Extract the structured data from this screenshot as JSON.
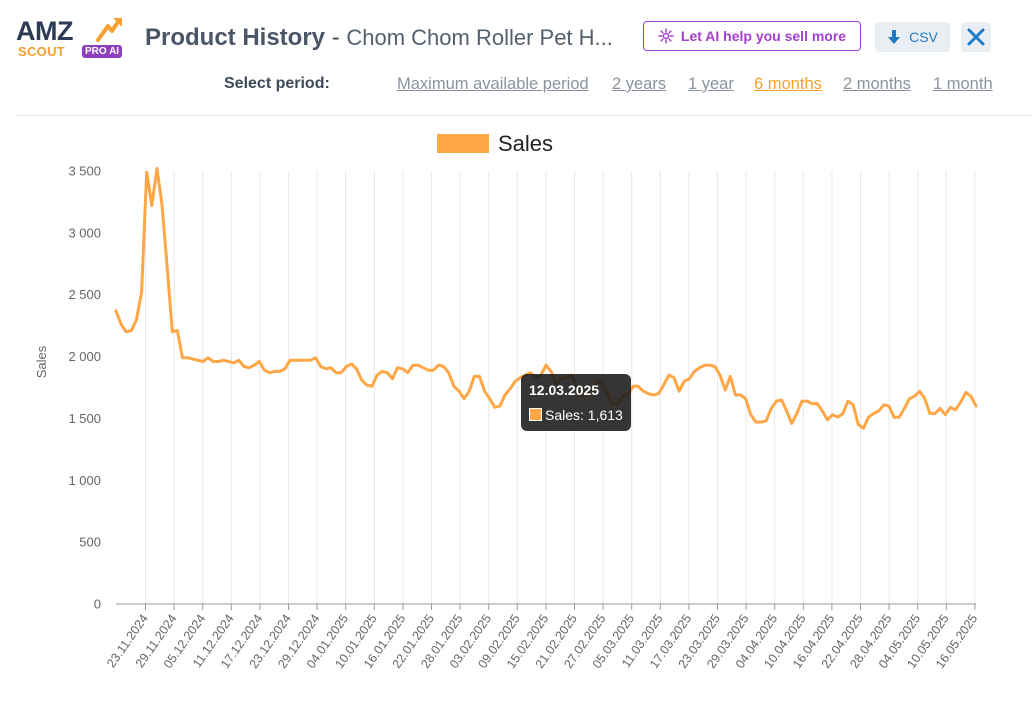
{
  "header": {
    "logo": {
      "line1": "AMZ",
      "line2": "SCOUT",
      "badge": "PRO AI"
    },
    "title": "Product History",
    "separator": " - ",
    "subtitle": "Chom Chom Roller Pet H...",
    "ai_button_label": "Let AI help you sell more",
    "csv_label": "CSV"
  },
  "period": {
    "label": "Select period:",
    "options": [
      "Maximum available period",
      "2 years",
      "1 year",
      "6 months",
      "2 months",
      "1 month"
    ],
    "active_index": 3
  },
  "colors": {
    "accent": "#f5a030",
    "line": "#ffa646",
    "ai": "#a23fd0",
    "link": "#1e7ac7"
  },
  "tooltip": {
    "date": "12.03.2025",
    "label": "Sales: 1,613"
  },
  "chart_data": {
    "type": "line",
    "legend": [
      "Sales"
    ],
    "legend_position": "top",
    "ylabel": "Sales",
    "ylim": [
      0,
      3500
    ],
    "yticks": [
      0,
      500,
      1000,
      1500,
      2000,
      2500,
      3000,
      3500
    ],
    "ytick_labels": [
      "0",
      "500",
      "1 000",
      "1 500",
      "2 000",
      "2 500",
      "3 000",
      "3 500"
    ],
    "xtick_labels": [
      "23.11.2024",
      "29.11.2024",
      "05.12.2024",
      "11.12.2024",
      "17.12.2024",
      "23.12.2024",
      "29.12.2024",
      "04.01.2025",
      "10.01.2025",
      "16.01.2025",
      "22.01.2025",
      "28.01.2025",
      "03.02.2025",
      "09.02.2025",
      "15.02.2025",
      "21.02.2025",
      "27.02.2025",
      "05.03.2025",
      "11.03.2025",
      "17.03.2025",
      "23.03.2025",
      "29.03.2025",
      "04.04.2025",
      "10.04.2025",
      "16.04.2025",
      "22.04.2025",
      "28.04.2025",
      "04.05.2025",
      "10.05.2025",
      "16.05.2025"
    ],
    "grid": true,
    "series": [
      {
        "name": "Sales",
        "values": [
          2370,
          2260,
          2200,
          2210,
          2300,
          2520,
          3490,
          3220,
          3520,
          3220,
          2720,
          2200,
          2210,
          1990,
          1990,
          1980,
          1970,
          1960,
          1990,
          1960,
          1960,
          1970,
          1960,
          1950,
          1970,
          1920,
          1910,
          1930,
          1960,
          1890,
          1870,
          1880,
          1880,
          1900,
          1970,
          1970,
          1970,
          1970,
          1970,
          1990,
          1920,
          1900,
          1910,
          1870,
          1870,
          1920,
          1940,
          1900,
          1810,
          1770,
          1760,
          1850,
          1880,
          1870,
          1820,
          1910,
          1900,
          1870,
          1930,
          1930,
          1910,
          1890,
          1890,
          1930,
          1920,
          1870,
          1760,
          1720,
          1660,
          1720,
          1840,
          1840,
          1720,
          1660,
          1590,
          1600,
          1690,
          1740,
          1800,
          1830,
          1850,
          1870,
          1830,
          1850,
          1930,
          1880,
          1780,
          1820,
          1830,
          1850,
          1750,
          1680,
          1690,
          1720,
          1800,
          1780,
          1700,
          1613,
          1620,
          1680,
          1690,
          1760,
          1760,
          1720,
          1700,
          1690,
          1700,
          1770,
          1850,
          1830,
          1720,
          1800,
          1820,
          1880,
          1910,
          1930,
          1930,
          1920,
          1850,
          1730,
          1840,
          1690,
          1690,
          1660,
          1530,
          1470,
          1470,
          1480,
          1580,
          1640,
          1650,
          1560,
          1460,
          1540,
          1640,
          1640,
          1620,
          1620,
          1560,
          1490,
          1530,
          1510,
          1540,
          1640,
          1610,
          1450,
          1420,
          1510,
          1540,
          1560,
          1610,
          1600,
          1510,
          1510,
          1580,
          1660,
          1680,
          1720,
          1660,
          1540,
          1540,
          1580,
          1530,
          1590,
          1570,
          1630,
          1710,
          1680,
          1600
        ]
      }
    ],
    "highlight": {
      "date": "12.03.2025",
      "value": 1613
    }
  }
}
